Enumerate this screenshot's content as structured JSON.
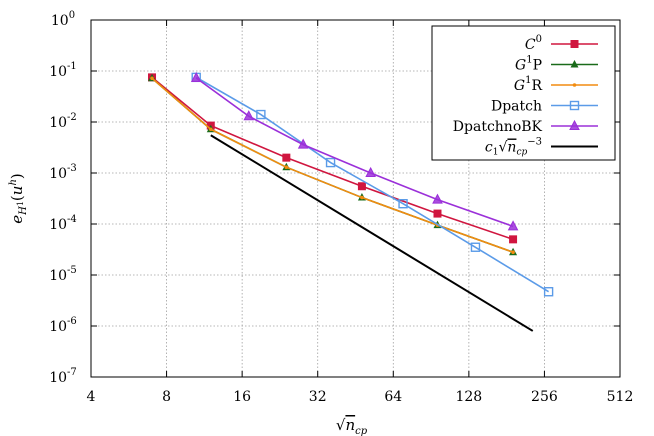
{
  "chart_data": {
    "type": "line",
    "xscale": "log2",
    "yscale": "log10",
    "xlim": [
      4,
      512
    ],
    "ylim": [
      1e-07,
      1
    ],
    "grid": true,
    "xlabel": "√n_cp",
    "ylabel": "e_H1(u^h)",
    "x_ticks": [
      "4",
      "8",
      "16",
      "32",
      "64",
      "128",
      "256",
      "512"
    ],
    "y_ticks": [
      {
        "base": "10",
        "exp": "-7"
      },
      {
        "base": "10",
        "exp": "-6"
      },
      {
        "base": "10",
        "exp": "-5"
      },
      {
        "base": "10",
        "exp": "-4"
      },
      {
        "base": "10",
        "exp": "-3"
      },
      {
        "base": "10",
        "exp": "-2"
      },
      {
        "base": "10",
        "exp": "-1"
      },
      {
        "base": "10",
        "exp": "0"
      }
    ],
    "legend_position": "top-right",
    "series": [
      {
        "name": "C0",
        "label_main": "C",
        "label_sup": "0",
        "label_suffix": "",
        "color": "#d0163f",
        "marker": "filled-square",
        "x": [
          7,
          12,
          24,
          48,
          96,
          192
        ],
        "y": [
          0.075,
          0.0085,
          0.002,
          0.00055,
          0.00016,
          5e-05
        ]
      },
      {
        "name": "G1P",
        "label_main": "G",
        "label_sup": "1",
        "label_suffix": "P",
        "color": "#1a6b1a",
        "marker": "filled-triangle",
        "x": [
          7,
          12,
          24,
          48,
          96,
          192
        ],
        "y": [
          0.072,
          0.0072,
          0.0013,
          0.00033,
          9.5e-05,
          2.8e-05
        ]
      },
      {
        "name": "G1R",
        "label_main": "G",
        "label_sup": "1",
        "label_suffix": "R",
        "color": "#f28c10",
        "marker": "dot",
        "x": [
          7,
          12,
          24,
          48,
          96,
          192
        ],
        "y": [
          0.072,
          0.0072,
          0.0013,
          0.00033,
          9.5e-05,
          2.8e-05
        ]
      },
      {
        "name": "Dpatch",
        "label_main": "Dpatch",
        "label_sup": "",
        "label_suffix": "",
        "color": "#5b9be8",
        "marker": "open-square",
        "x": [
          10.5,
          19,
          36,
          70,
          136,
          266
        ],
        "y": [
          0.075,
          0.014,
          0.0016,
          0.00025,
          3.5e-05,
          4.7e-06
        ]
      },
      {
        "name": "DpatchnoBK",
        "label_main": "DpatchnoBK",
        "label_sup": "",
        "label_suffix": "",
        "color": "#9b30d9",
        "marker": "open-triangle",
        "x": [
          10.5,
          17,
          28,
          52,
          96,
          192
        ],
        "y": [
          0.073,
          0.013,
          0.0036,
          0.001,
          0.0003,
          9e-05
        ]
      },
      {
        "name": "c1 sqrt(n_cp)^-3",
        "label_main": "c",
        "label_sup": "",
        "label_suffix": "",
        "color": "#000000",
        "marker": "none",
        "x": [
          12,
          230
        ],
        "y": [
          0.0055,
          8e-07
        ]
      }
    ],
    "reference_label": {
      "c": "c",
      "sub": "1",
      "n": "n",
      "nsub": "cp",
      "exp": "−3"
    }
  }
}
